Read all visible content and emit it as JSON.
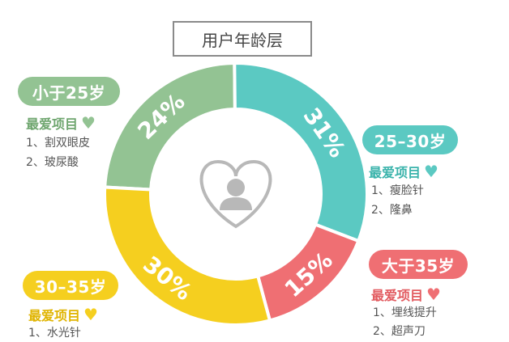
{
  "title": "用户年龄层",
  "colors": {
    "green": "#93c393",
    "teal": "#5bc9c2",
    "yellow": "#f5cf1f",
    "red": "#ef6f73",
    "avatar": "#b8b8b8"
  },
  "chart_data": {
    "type": "pie",
    "slices": [
      {
        "label": "小于25岁",
        "value": 24,
        "text": "24%",
        "color": "#93c393"
      },
      {
        "label": "25–30岁",
        "value": 31,
        "text": "31%",
        "color": "#5bc9c2"
      },
      {
        "label": "大于35岁",
        "value": 15,
        "text": "15%",
        "color": "#ef6f73"
      },
      {
        "label": "30–35岁",
        "value": 30,
        "text": "30%",
        "color": "#f5cf1f"
      }
    ]
  },
  "groups": {
    "under25": {
      "label": "小于25岁",
      "fav_title": "最爱项目",
      "items": [
        "1、割双眼皮",
        "2、玻尿酸"
      ]
    },
    "age25_30": {
      "label": "25–30岁",
      "fav_title": "最爱项目",
      "items": [
        "1、瘦脸针",
        "2、隆鼻"
      ]
    },
    "over35": {
      "label": "大于35岁",
      "fav_title": "最爱项目",
      "items": [
        "1、埋线提升",
        "2、超声刀"
      ]
    },
    "age30_35": {
      "label": "30–35岁",
      "fav_title": "最爱项目",
      "items": [
        "1、水光针"
      ]
    }
  }
}
